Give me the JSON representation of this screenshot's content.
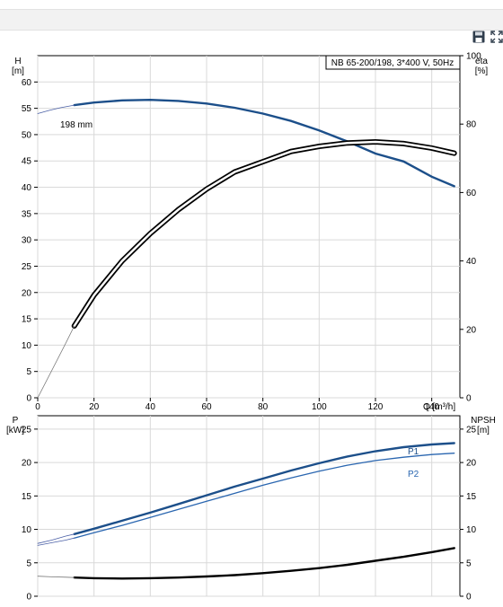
{
  "toolbar": {
    "save_icon": "save-icon",
    "expand_icon": "expand-icon"
  },
  "chart_data": [
    {
      "type": "line",
      "title": "NB 65-200/198, 3*400 V, 50Hz",
      "xlabel": "Q [m³/h]",
      "x_ticks": [
        "0",
        "20",
        "40",
        "60",
        "80",
        "100",
        "120",
        "140"
      ],
      "xlim": [
        0,
        150
      ],
      "left_axis": {
        "label_line1": "H",
        "label_line2": "[m]",
        "ticks": [
          "0",
          "5",
          "10",
          "15",
          "20",
          "25",
          "30",
          "35",
          "40",
          "45",
          "50",
          "55",
          "60"
        ],
        "ylim": [
          0,
          65
        ]
      },
      "right_axis": {
        "label_line1": "eta",
        "label_line2": "[%]",
        "ticks": [
          "0",
          "20",
          "40",
          "60",
          "80",
          "100"
        ],
        "ylim": [
          0,
          100
        ]
      },
      "annotations": [
        {
          "text": "198 mm"
        }
      ],
      "grid": true,
      "series": [
        {
          "axis": "left",
          "color": "#1c4f8a",
          "style": "thick",
          "x": [
            13,
            20,
            30,
            40,
            50,
            60,
            70,
            80,
            90,
            100,
            110,
            120,
            130,
            140,
            148
          ],
          "y": [
            55.6,
            56.1,
            56.5,
            56.6,
            56.4,
            55.9,
            55.1,
            54.0,
            52.6,
            50.8,
            48.7,
            46.4,
            44.9,
            42.0,
            40.2
          ]
        },
        {
          "axis": "left",
          "color": "#4a5fa6",
          "style": "thin",
          "x": [
            0,
            4,
            8,
            13
          ],
          "y": [
            54.0,
            54.6,
            55.1,
            55.6
          ]
        },
        {
          "axis": "right",
          "color": "#000000",
          "style": "double",
          "x": [
            13,
            20,
            30,
            40,
            50,
            60,
            70,
            80,
            90,
            100,
            110,
            120,
            130,
            140,
            148
          ],
          "y": [
            21,
            30,
            40,
            48,
            55,
            61,
            66,
            69,
            72,
            73.5,
            74.5,
            74.8,
            74.3,
            73,
            71.5
          ]
        },
        {
          "axis": "right",
          "color": "#777777",
          "style": "thin",
          "x": [
            0,
            5,
            10,
            13
          ],
          "y": [
            0,
            8,
            16,
            21
          ]
        }
      ]
    },
    {
      "type": "line",
      "xlim": [
        0,
        150
      ],
      "left_axis": {
        "label_line1": "P",
        "label_line2": "[kW]",
        "ticks": [
          "0",
          "5",
          "10",
          "15",
          "20",
          "25"
        ],
        "ylim": [
          0,
          27
        ]
      },
      "right_axis": {
        "label_line1": "NPSH",
        "label_line2": "[m]",
        "ticks": [
          "0",
          "5",
          "10",
          "15",
          "20",
          "25"
        ],
        "ylim": [
          0,
          27
        ]
      },
      "grid": true,
      "series": [
        {
          "name": "P1",
          "axis": "left",
          "color": "#1c4f8a",
          "style": "thick",
          "x": [
            13,
            20,
            30,
            40,
            50,
            60,
            70,
            80,
            90,
            100,
            110,
            120,
            130,
            140,
            148
          ],
          "y": [
            9.3,
            10.1,
            11.3,
            12.5,
            13.8,
            15.1,
            16.4,
            17.6,
            18.8,
            19.9,
            20.9,
            21.7,
            22.3,
            22.7,
            22.9
          ]
        },
        {
          "name": "P2",
          "axis": "left",
          "color": "#2a66b0",
          "style": "medium",
          "x": [
            13,
            20,
            30,
            40,
            50,
            60,
            70,
            80,
            90,
            100,
            110,
            120,
            130,
            140,
            148
          ],
          "y": [
            8.7,
            9.5,
            10.6,
            11.8,
            13.0,
            14.2,
            15.4,
            16.6,
            17.7,
            18.7,
            19.6,
            20.3,
            20.8,
            21.2,
            21.4
          ]
        },
        {
          "axis": "left",
          "color": "#4a5fa6",
          "style": "thin",
          "x": [
            0,
            5,
            10,
            13
          ],
          "y": [
            7.9,
            8.4,
            9.0,
            9.3
          ]
        },
        {
          "axis": "left",
          "color": "#4a5fa6",
          "style": "thin",
          "x": [
            0,
            5,
            10,
            13
          ],
          "y": [
            7.6,
            8.0,
            8.4,
            8.7
          ]
        },
        {
          "axis": "right",
          "color": "#000000",
          "style": "thick",
          "x": [
            13,
            20,
            30,
            40,
            50,
            60,
            70,
            80,
            90,
            100,
            110,
            120,
            130,
            140,
            148
          ],
          "y": [
            2.8,
            2.7,
            2.65,
            2.7,
            2.8,
            2.95,
            3.15,
            3.45,
            3.8,
            4.2,
            4.7,
            5.3,
            5.9,
            6.6,
            7.2
          ]
        },
        {
          "axis": "right",
          "color": "#777777",
          "style": "thin",
          "x": [
            0,
            5,
            10,
            13
          ],
          "y": [
            3.0,
            2.9,
            2.85,
            2.8
          ]
        }
      ]
    }
  ]
}
